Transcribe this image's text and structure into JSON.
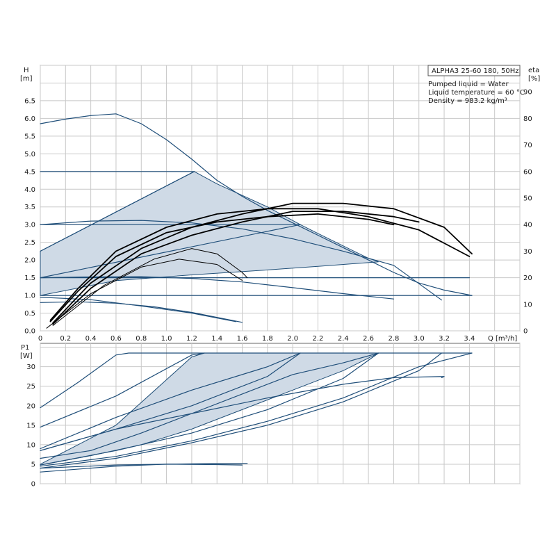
{
  "chart_data": [
    {
      "type": "line",
      "panel": "head",
      "model_label": "ALPHA3 25-60 180, 50Hz",
      "info_lines": [
        "Pumped liquid = Water",
        "Liquid temperature = 60 °C",
        "Density = 983.2 kg/m³"
      ],
      "ylabel": "H",
      "yunit": "[m]",
      "y2label": "eta",
      "y2unit": "[%]",
      "xlabel": "Q",
      "xunit": "[m³/h]",
      "xlim": [
        0,
        3.8
      ],
      "ylim": [
        0,
        7.5
      ],
      "y2lim": [
        0,
        100
      ],
      "x_ticks": [
        "0",
        "0.2",
        "0.4",
        "0.6",
        "0.8",
        "1.0",
        "1.2",
        "1.4",
        "1.6",
        "1.8",
        "2.0",
        "2.2",
        "2.4",
        "2.6",
        "2.8",
        "3.0",
        "3.2",
        "3.4"
      ],
      "y_ticks": [
        "0.0",
        "0.5",
        "1.0",
        "1.5",
        "2.0",
        "2.5",
        "3.0",
        "3.5",
        "4.0",
        "4.5",
        "5.0",
        "5.5",
        "6.0",
        "6.5"
      ],
      "y2_ticks": [
        "0",
        "10",
        "20",
        "30",
        "40",
        "50",
        "60",
        "70",
        "80",
        "90"
      ],
      "grid": true,
      "series": [
        {
          "role": "shaded-area",
          "points": [
            [
              0,
              2.25
            ],
            [
              1.22,
              4.5
            ],
            [
              1.4,
              4.15
            ],
            [
              1.8,
              3.5
            ],
            [
              2.06,
              3.0
            ],
            [
              2.2,
              2.75
            ],
            [
              2.4,
              2.4
            ],
            [
              2.6,
              2.05
            ],
            [
              2.68,
              1.95
            ],
            [
              2.2,
              1.82
            ],
            [
              1.8,
              1.72
            ],
            [
              1.2,
              1.58
            ],
            [
              0.6,
              1.42
            ],
            [
              0,
              1.0
            ]
          ]
        },
        {
          "role": "constant-head-4.5",
          "points": [
            [
              0,
              4.5
            ],
            [
              1.22,
              4.5
            ]
          ]
        },
        {
          "role": "constant-head-3.0",
          "points": [
            [
              0,
              3.0
            ],
            [
              2.06,
              3.0
            ]
          ]
        },
        {
          "role": "constant-head-1.5",
          "points": [
            [
              0,
              1.5
            ],
            [
              3.4,
              1.5
            ]
          ]
        },
        {
          "role": "max-curve",
          "points": [
            [
              0,
              5.85
            ],
            [
              0.2,
              5.98
            ],
            [
              0.4,
              6.08
            ],
            [
              0.6,
              6.13
            ],
            [
              0.8,
              5.85
            ],
            [
              1.0,
              5.4
            ],
            [
              1.2,
              4.85
            ],
            [
              1.4,
              4.25
            ],
            [
              1.6,
              3.8
            ],
            [
              1.8,
              3.4
            ],
            [
              2.0,
              3.05
            ],
            [
              2.2,
              2.7
            ],
            [
              2.4,
              2.35
            ],
            [
              2.6,
              2.0
            ],
            [
              2.8,
              1.65
            ],
            [
              3.0,
              1.35
            ],
            [
              3.2,
              1.15
            ],
            [
              3.42,
              1.0
            ]
          ]
        },
        {
          "role": "prop-pressure-high",
          "points": [
            [
              0,
              2.25
            ],
            [
              1.22,
              4.5
            ]
          ]
        },
        {
          "role": "prop-pressure-mid",
          "points": [
            [
              0,
              1.5
            ],
            [
              2.06,
              3.0
            ]
          ]
        },
        {
          "role": "prop-pressure-low",
          "points": [
            [
              0,
              1.0
            ],
            [
              3.42,
              1.0
            ]
          ]
        },
        {
          "role": "curve-3m",
          "points": [
            [
              0,
              3.0
            ],
            [
              0.4,
              3.1
            ],
            [
              0.8,
              3.12
            ],
            [
              1.2,
              3.05
            ],
            [
              1.6,
              2.88
            ],
            [
              2.0,
              2.6
            ],
            [
              2.4,
              2.25
            ],
            [
              2.8,
              1.85
            ],
            [
              3.18,
              0.87
            ]
          ]
        },
        {
          "role": "curve-1.5m",
          "points": [
            [
              0,
              1.5
            ],
            [
              0.3,
              1.52
            ],
            [
              0.8,
              1.53
            ],
            [
              1.2,
              1.48
            ],
            [
              1.6,
              1.38
            ],
            [
              2.0,
              1.22
            ],
            [
              2.4,
              1.05
            ],
            [
              2.8,
              0.9
            ]
          ]
        },
        {
          "role": "curve-low-1",
          "points": [
            [
              0,
              0.8
            ],
            [
              0.3,
              0.82
            ],
            [
              0.6,
              0.78
            ],
            [
              0.9,
              0.68
            ],
            [
              1.2,
              0.52
            ],
            [
              1.6,
              0.24
            ]
          ]
        },
        {
          "role": "curve-low-2",
          "points": [
            [
              0,
              0.95
            ],
            [
              0.4,
              0.88
            ],
            [
              0.8,
              0.7
            ],
            [
              1.2,
              0.5
            ],
            [
              1.55,
              0.26
            ]
          ]
        },
        {
          "role": "efficiency-1",
          "points": [
            [
              0.08,
              4.0
            ],
            [
              0.3,
              16
            ],
            [
              0.6,
              30
            ],
            [
              1.0,
              39
            ],
            [
              1.4,
              44
            ],
            [
              1.8,
              46
            ],
            [
              2.2,
              46
            ],
            [
              2.6,
              43
            ],
            [
              3.0,
              38
            ],
            [
              3.4,
              28
            ]
          ]
        },
        {
          "role": "efficiency-2",
          "points": [
            [
              0.08,
              3.5
            ],
            [
              0.3,
              15
            ],
            [
              0.6,
              28
            ],
            [
              1.0,
              37
            ],
            [
              1.4,
              41
            ],
            [
              1.8,
              43
            ],
            [
              2.2,
              44
            ],
            [
              2.6,
              42
            ],
            [
              2.8,
              40
            ]
          ]
        },
        {
          "role": "efficiency-3",
          "points": [
            [
              0.1,
              3.0
            ],
            [
              0.4,
              18
            ],
            [
              0.8,
              31
            ],
            [
              1.2,
              39
            ],
            [
              1.6,
              44
            ],
            [
              2.0,
              48
            ],
            [
              2.4,
              48
            ],
            [
              2.8,
              46
            ],
            [
              3.2,
              39
            ],
            [
              3.42,
              29
            ]
          ]
        },
        {
          "role": "efficiency-4",
          "points": [
            [
              0.1,
              2.5
            ],
            [
              0.4,
              16
            ],
            [
              0.8,
              29
            ],
            [
              1.2,
              36
            ],
            [
              1.6,
              41
            ],
            [
              2.0,
              45
            ],
            [
              2.4,
              45
            ],
            [
              2.8,
              43
            ],
            [
              3.0,
              41
            ]
          ]
        },
        {
          "role": "efficiency-5",
          "points": [
            [
              0.1,
              2.0
            ],
            [
              0.5,
              17
            ],
            [
              0.9,
              27
            ],
            [
              1.2,
              31
            ],
            [
              1.4,
              29
            ],
            [
              1.6,
              22
            ],
            [
              1.64,
              20
            ]
          ]
        },
        {
          "role": "efficiency-6",
          "points": [
            [
              0.05,
              1.0
            ],
            [
              0.4,
              14
            ],
            [
              0.8,
              24
            ],
            [
              1.1,
              27
            ],
            [
              1.4,
              25
            ],
            [
              1.6,
              19
            ]
          ]
        }
      ]
    },
    {
      "type": "line",
      "panel": "power",
      "ylabel": "P1",
      "yunit": "[W]",
      "xlim": [
        0,
        3.8
      ],
      "ylim": [
        0,
        36
      ],
      "y_ticks": [
        "0",
        "5",
        "10",
        "15",
        "20",
        "25",
        "30"
      ],
      "grid": true,
      "series": [
        {
          "role": "shaded-area",
          "points": [
            [
              0,
              5.0
            ],
            [
              0.6,
              15
            ],
            [
              1.2,
              32.5
            ],
            [
              1.3,
              33.5
            ],
            [
              2.06,
              33.5
            ],
            [
              2.68,
              33.5
            ],
            [
              2.4,
              29
            ],
            [
              2.0,
              24
            ],
            [
              1.6,
              19
            ],
            [
              1.2,
              14
            ],
            [
              0.8,
              10
            ],
            [
              0.4,
              7.2
            ],
            [
              0,
              4.8
            ]
          ]
        },
        {
          "role": "max-power",
          "points": [
            [
              0,
              19.5
            ],
            [
              0.3,
              26
            ],
            [
              0.6,
              33
            ],
            [
              0.7,
              33.5
            ],
            [
              3.42,
              33.5
            ]
          ]
        },
        {
          "role": "power-3m",
          "points": [
            [
              0,
              14.5
            ],
            [
              0.6,
              22.5
            ],
            [
              1.2,
              33
            ],
            [
              1.3,
              33.5
            ]
          ]
        },
        {
          "role": "power-mid-1",
          "points": [
            [
              0,
              9.0
            ],
            [
              0.6,
              17
            ],
            [
              1.2,
              24
            ],
            [
              1.8,
              30
            ],
            [
              2.06,
              33.5
            ]
          ]
        },
        {
          "role": "power-mid-2",
          "points": [
            [
              0,
              8.5
            ],
            [
              0.6,
              14
            ],
            [
              1.2,
              20
            ],
            [
              1.8,
              27.5
            ],
            [
              2.06,
              33.5
            ]
          ]
        },
        {
          "role": "power-1.5m",
          "points": [
            [
              0,
              6.5
            ],
            [
              0.4,
              8.5
            ],
            [
              0.8,
              13
            ],
            [
              1.2,
              18
            ],
            [
              1.6,
              23
            ],
            [
              2.0,
              28
            ],
            [
              2.4,
              31
            ],
            [
              2.68,
              33.5
            ]
          ]
        },
        {
          "role": "power-low-a",
          "points": [
            [
              0,
              4.8
            ],
            [
              0.6,
              8.5
            ],
            [
              1.2,
              13
            ],
            [
              1.8,
              19
            ],
            [
              2.4,
              27
            ],
            [
              2.68,
              33.5
            ]
          ]
        },
        {
          "role": "power-low-b",
          "points": [
            [
              0,
              4.5
            ],
            [
              0.6,
              7
            ],
            [
              1.2,
              11
            ],
            [
              1.8,
              16
            ],
            [
              2.4,
              22
            ],
            [
              3.0,
              30
            ],
            [
              3.42,
              33.5
            ]
          ]
        },
        {
          "role": "power-low-c",
          "points": [
            [
              0,
              4.0
            ],
            [
              0.6,
              6.5
            ],
            [
              1.2,
              10.5
            ],
            [
              1.8,
              15
            ],
            [
              2.4,
              21
            ],
            [
              3.0,
              29
            ],
            [
              3.18,
              33.5
            ]
          ]
        },
        {
          "role": "power-3m-curve",
          "points": [
            [
              0,
              8.5
            ],
            [
              0.6,
              14
            ],
            [
              1.2,
              18
            ],
            [
              1.8,
              22
            ],
            [
              2.4,
              25.5
            ],
            [
              2.8,
              27.2
            ],
            [
              3.2,
              27.5
            ],
            [
              3.18,
              27.2
            ]
          ]
        },
        {
          "role": "power-min-a",
          "points": [
            [
              0,
              3.0
            ],
            [
              0.6,
              4.5
            ],
            [
              1.0,
              5.0
            ],
            [
              1.4,
              5.2
            ],
            [
              1.64,
              5.2
            ]
          ]
        },
        {
          "role": "power-min-b",
          "points": [
            [
              0,
              4.0
            ],
            [
              0.6,
              4.8
            ],
            [
              1.0,
              5.0
            ],
            [
              1.4,
              4.9
            ],
            [
              1.6,
              4.8
            ]
          ]
        }
      ]
    }
  ]
}
